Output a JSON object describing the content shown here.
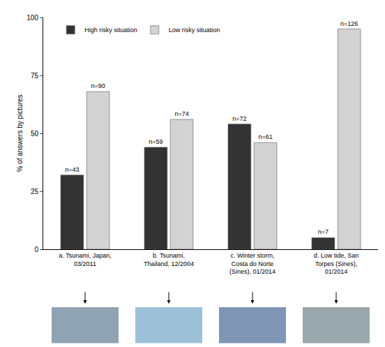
{
  "chart_data": {
    "type": "bar",
    "ylabel": "% of answers by pictures",
    "categories": [
      "a. Tsunami, Japan, 03/2011",
      "b. Tsunami, Thailand, 12/2004",
      "c. Winter storm, Costa do Norte (Sines), 01/2014",
      "d. Low tide, San Torpes (Sines), 01/2014"
    ],
    "series": [
      {
        "name": "High risky situation",
        "color": "#333333",
        "values": [
          32,
          44,
          54,
          5
        ],
        "labels": [
          "n=43",
          "n=59",
          "n=72",
          "n=7"
        ]
      },
      {
        "name": "Low risky situation",
        "color": "#d3d3d3",
        "values": [
          68,
          56,
          46,
          95
        ],
        "labels": [
          "n=90",
          "n=74",
          "n=61",
          "n=126"
        ]
      }
    ],
    "ylim": [
      0,
      100
    ],
    "yticks": [
      0,
      25,
      50,
      75,
      100
    ],
    "grid": false,
    "legend": "top left"
  }
}
